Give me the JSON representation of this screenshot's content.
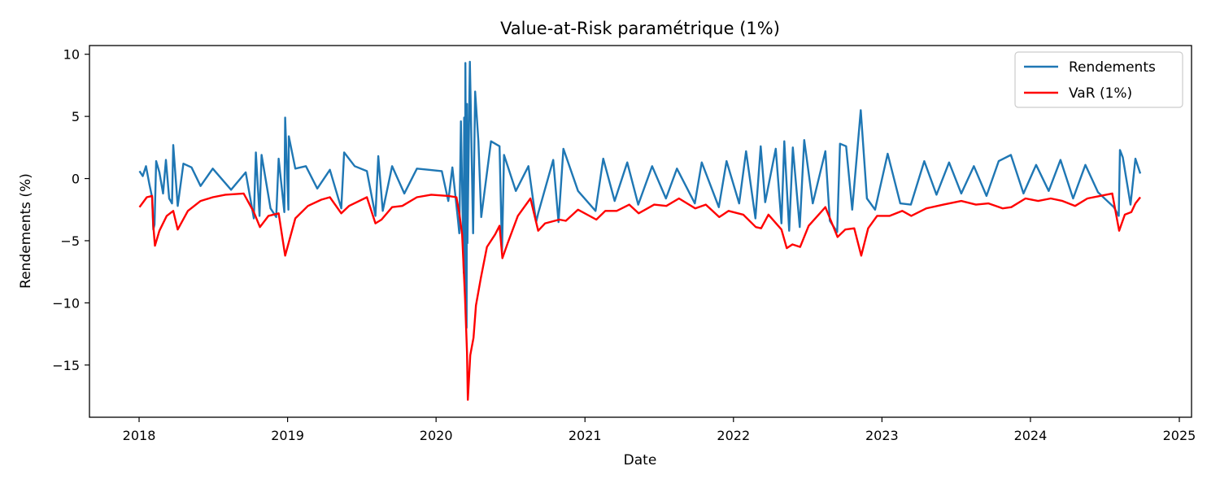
{
  "chart_data": {
    "type": "line",
    "title": "Value-at-Risk paramétrique (1%)",
    "xlabel": "Date",
    "ylabel": "Rendements (%)",
    "xlim": [
      "2017-09-01",
      "2025-01-31"
    ],
    "ylim": [
      -19.2,
      10.7
    ],
    "xticks": [
      {
        "value": "2018-01-01",
        "label": "2018"
      },
      {
        "value": "2019-01-01",
        "label": "2019"
      },
      {
        "value": "2020-01-01",
        "label": "2020"
      },
      {
        "value": "2021-01-01",
        "label": "2021"
      },
      {
        "value": "2022-01-01",
        "label": "2022"
      },
      {
        "value": "2023-01-01",
        "label": "2023"
      },
      {
        "value": "2024-01-01",
        "label": "2024"
      },
      {
        "value": "2025-01-01",
        "label": "2025"
      }
    ],
    "yticks": [
      10,
      5,
      0,
      -5,
      -10,
      -15
    ],
    "grid": false,
    "legend": {
      "position": "top-right"
    },
    "series": [
      {
        "name": "Rendements",
        "color": "#1f77b4",
        "points": [
          [
            "2018-01-02",
            0.6
          ],
          [
            "2018-01-10",
            0.2
          ],
          [
            "2018-01-18",
            1.0
          ],
          [
            "2018-01-26",
            -0.4
          ],
          [
            "2018-02-02",
            -1.5
          ],
          [
            "2018-02-05",
            -4.1
          ],
          [
            "2018-02-08",
            -3.7
          ],
          [
            "2018-02-12",
            1.4
          ],
          [
            "2018-02-20",
            0.5
          ],
          [
            "2018-03-01",
            -1.2
          ],
          [
            "2018-03-08",
            1.5
          ],
          [
            "2018-03-16",
            -1.6
          ],
          [
            "2018-03-23",
            -2.0
          ],
          [
            "2018-03-26",
            2.7
          ],
          [
            "2018-04-06",
            -2.2
          ],
          [
            "2018-04-20",
            1.2
          ],
          [
            "2018-05-10",
            0.9
          ],
          [
            "2018-06-01",
            -0.6
          ],
          [
            "2018-07-01",
            0.8
          ],
          [
            "2018-08-15",
            -0.9
          ],
          [
            "2018-09-20",
            0.5
          ],
          [
            "2018-10-10",
            -3.2
          ],
          [
            "2018-10-15",
            2.1
          ],
          [
            "2018-10-24",
            -3.0
          ],
          [
            "2018-10-29",
            1.9
          ],
          [
            "2018-11-20",
            -2.4
          ],
          [
            "2018-12-04",
            -3.1
          ],
          [
            "2018-12-10",
            1.6
          ],
          [
            "2018-12-24",
            -2.7
          ],
          [
            "2018-12-26",
            4.9
          ],
          [
            "2019-01-03",
            -2.5
          ],
          [
            "2019-01-04",
            3.4
          ],
          [
            "2019-01-20",
            0.8
          ],
          [
            "2019-02-15",
            1.0
          ],
          [
            "2019-03-15",
            -0.8
          ],
          [
            "2019-04-15",
            0.7
          ],
          [
            "2019-05-13",
            -2.4
          ],
          [
            "2019-05-20",
            2.1
          ],
          [
            "2019-06-15",
            1.0
          ],
          [
            "2019-07-15",
            0.6
          ],
          [
            "2019-08-05",
            -3.0
          ],
          [
            "2019-08-12",
            1.8
          ],
          [
            "2019-08-23",
            -2.6
          ],
          [
            "2019-09-15",
            1.0
          ],
          [
            "2019-10-15",
            -1.2
          ],
          [
            "2019-11-15",
            0.8
          ],
          [
            "2019-12-15",
            0.7
          ],
          [
            "2020-01-15",
            0.6
          ],
          [
            "2020-01-31",
            -1.8
          ],
          [
            "2020-02-10",
            0.9
          ],
          [
            "2020-02-24",
            -3.4
          ],
          [
            "2020-02-27",
            -4.4
          ],
          [
            "2020-03-02",
            4.6
          ],
          [
            "2020-03-09",
            -7.6
          ],
          [
            "2020-03-10",
            4.9
          ],
          [
            "2020-03-12",
            -9.5
          ],
          [
            "2020-03-13",
            9.3
          ],
          [
            "2020-03-16",
            -12.0
          ],
          [
            "2020-03-17",
            6.0
          ],
          [
            "2020-03-18",
            -5.2
          ],
          [
            "2020-03-24",
            9.4
          ],
          [
            "2020-03-26",
            6.2
          ],
          [
            "2020-04-01",
            -4.4
          ],
          [
            "2020-04-06",
            7.0
          ],
          [
            "2020-04-14",
            3.0
          ],
          [
            "2020-04-21",
            -3.1
          ],
          [
            "2020-05-15",
            3.0
          ],
          [
            "2020-06-05",
            2.6
          ],
          [
            "2020-06-11",
            -5.9
          ],
          [
            "2020-06-16",
            1.9
          ],
          [
            "2020-07-15",
            -1.0
          ],
          [
            "2020-08-15",
            1.0
          ],
          [
            "2020-09-03",
            -3.5
          ],
          [
            "2020-09-08",
            -2.8
          ],
          [
            "2020-10-15",
            1.5
          ],
          [
            "2020-10-28",
            -3.5
          ],
          [
            "2020-11-09",
            2.4
          ],
          [
            "2020-12-15",
            -1.0
          ],
          [
            "2021-01-27",
            -2.6
          ],
          [
            "2021-02-15",
            1.6
          ],
          [
            "2021-03-15",
            -1.8
          ],
          [
            "2021-04-15",
            1.3
          ],
          [
            "2021-05-12",
            -2.1
          ],
          [
            "2021-06-15",
            1.0
          ],
          [
            "2021-07-19",
            -1.6
          ],
          [
            "2021-08-15",
            0.8
          ],
          [
            "2021-09-28",
            -2.0
          ],
          [
            "2021-10-15",
            1.3
          ],
          [
            "2021-11-26",
            -2.3
          ],
          [
            "2021-12-15",
            1.4
          ],
          [
            "2022-01-15",
            -2.0
          ],
          [
            "2022-02-01",
            2.2
          ],
          [
            "2022-02-24",
            -3.2
          ],
          [
            "2022-03-09",
            2.6
          ],
          [
            "2022-03-20",
            -1.9
          ],
          [
            "2022-04-15",
            2.4
          ],
          [
            "2022-04-29",
            -3.6
          ],
          [
            "2022-05-06",
            3.0
          ],
          [
            "2022-05-18",
            -4.2
          ],
          [
            "2022-05-27",
            2.5
          ],
          [
            "2022-06-13",
            -3.9
          ],
          [
            "2022-06-24",
            3.1
          ],
          [
            "2022-07-15",
            -2.0
          ],
          [
            "2022-08-15",
            2.2
          ],
          [
            "2022-08-26",
            -3.4
          ],
          [
            "2022-09-13",
            -4.3
          ],
          [
            "2022-09-20",
            2.8
          ],
          [
            "2022-10-05",
            2.6
          ],
          [
            "2022-10-20",
            -2.5
          ],
          [
            "2022-11-10",
            5.5
          ],
          [
            "2022-11-25",
            -1.6
          ],
          [
            "2022-12-15",
            -2.5
          ],
          [
            "2023-01-15",
            2.0
          ],
          [
            "2023-02-15",
            -2.0
          ],
          [
            "2023-03-13",
            -2.1
          ],
          [
            "2023-04-15",
            1.4
          ],
          [
            "2023-05-15",
            -1.3
          ],
          [
            "2023-06-15",
            1.3
          ],
          [
            "2023-07-15",
            -1.2
          ],
          [
            "2023-08-15",
            1.0
          ],
          [
            "2023-09-15",
            -1.4
          ],
          [
            "2023-10-15",
            1.4
          ],
          [
            "2023-11-14",
            1.9
          ],
          [
            "2023-12-15",
            -1.2
          ],
          [
            "2024-01-15",
            1.1
          ],
          [
            "2024-02-15",
            -1.0
          ],
          [
            "2024-03-15",
            1.5
          ],
          [
            "2024-04-15",
            -1.6
          ],
          [
            "2024-05-15",
            1.1
          ],
          [
            "2024-06-15",
            -1.1
          ],
          [
            "2024-07-24",
            -2.3
          ],
          [
            "2024-08-05",
            -3.0
          ],
          [
            "2024-08-08",
            2.3
          ],
          [
            "2024-08-15",
            1.7
          ],
          [
            "2024-09-03",
            -2.1
          ],
          [
            "2024-09-15",
            1.6
          ],
          [
            "2024-09-27",
            0.4
          ]
        ]
      },
      {
        "name": "VaR (1%)",
        "color": "#ff0000",
        "points": [
          [
            "2018-01-02",
            -2.3
          ],
          [
            "2018-01-20",
            -1.5
          ],
          [
            "2018-02-02",
            -1.4
          ],
          [
            "2018-02-05",
            -3.8
          ],
          [
            "2018-02-09",
            -5.4
          ],
          [
            "2018-02-20",
            -4.2
          ],
          [
            "2018-03-10",
            -3.0
          ],
          [
            "2018-03-26",
            -2.6
          ],
          [
            "2018-04-06",
            -4.1
          ],
          [
            "2018-05-01",
            -2.6
          ],
          [
            "2018-06-01",
            -1.8
          ],
          [
            "2018-07-01",
            -1.5
          ],
          [
            "2018-08-01",
            -1.3
          ],
          [
            "2018-09-15",
            -1.2
          ],
          [
            "2018-10-10",
            -2.7
          ],
          [
            "2018-10-25",
            -3.9
          ],
          [
            "2018-11-15",
            -3.0
          ],
          [
            "2018-12-10",
            -2.8
          ],
          [
            "2018-12-26",
            -6.2
          ],
          [
            "2019-01-05",
            -5.0
          ],
          [
            "2019-01-20",
            -3.2
          ],
          [
            "2019-02-20",
            -2.2
          ],
          [
            "2019-03-25",
            -1.7
          ],
          [
            "2019-04-15",
            -1.5
          ],
          [
            "2019-05-13",
            -2.8
          ],
          [
            "2019-06-01",
            -2.2
          ],
          [
            "2019-07-15",
            -1.5
          ],
          [
            "2019-08-05",
            -3.6
          ],
          [
            "2019-08-20",
            -3.3
          ],
          [
            "2019-09-15",
            -2.3
          ],
          [
            "2019-10-10",
            -2.2
          ],
          [
            "2019-11-15",
            -1.5
          ],
          [
            "2019-12-20",
            -1.3
          ],
          [
            "2020-01-31",
            -1.4
          ],
          [
            "2020-02-20",
            -1.5
          ],
          [
            "2020-02-27",
            -2.8
          ],
          [
            "2020-03-05",
            -4.5
          ],
          [
            "2020-03-12",
            -9.5
          ],
          [
            "2020-03-17",
            -14.0
          ],
          [
            "2020-03-19",
            -17.8
          ],
          [
            "2020-03-25",
            -14.2
          ],
          [
            "2020-04-02",
            -12.8
          ],
          [
            "2020-04-08",
            -10.2
          ],
          [
            "2020-04-20",
            -8.0
          ],
          [
            "2020-05-05",
            -5.5
          ],
          [
            "2020-05-25",
            -4.5
          ],
          [
            "2020-06-05",
            -3.8
          ],
          [
            "2020-06-12",
            -6.4
          ],
          [
            "2020-06-25",
            -5.2
          ],
          [
            "2020-07-20",
            -3.0
          ],
          [
            "2020-08-20",
            -1.6
          ],
          [
            "2020-09-08",
            -4.2
          ],
          [
            "2020-09-25",
            -3.6
          ],
          [
            "2020-10-30",
            -3.3
          ],
          [
            "2020-11-15",
            -3.4
          ],
          [
            "2020-12-15",
            -2.5
          ],
          [
            "2021-01-29",
            -3.3
          ],
          [
            "2021-02-20",
            -2.6
          ],
          [
            "2021-03-20",
            -2.6
          ],
          [
            "2021-04-20",
            -2.1
          ],
          [
            "2021-05-13",
            -2.8
          ],
          [
            "2021-06-20",
            -2.1
          ],
          [
            "2021-07-20",
            -2.2
          ],
          [
            "2021-08-20",
            -1.6
          ],
          [
            "2021-09-29",
            -2.4
          ],
          [
            "2021-10-25",
            -2.1
          ],
          [
            "2021-11-27",
            -3.1
          ],
          [
            "2021-12-20",
            -2.6
          ],
          [
            "2022-01-25",
            -2.9
          ],
          [
            "2022-02-25",
            -3.9
          ],
          [
            "2022-03-10",
            -4.0
          ],
          [
            "2022-03-28",
            -2.9
          ],
          [
            "2022-04-29",
            -4.1
          ],
          [
            "2022-05-12",
            -5.6
          ],
          [
            "2022-05-26",
            -5.3
          ],
          [
            "2022-06-14",
            -5.5
          ],
          [
            "2022-07-05",
            -3.8
          ],
          [
            "2022-08-15",
            -2.3
          ],
          [
            "2022-09-14",
            -4.7
          ],
          [
            "2022-10-03",
            -4.1
          ],
          [
            "2022-10-25",
            -4.0
          ],
          [
            "2022-11-11",
            -6.2
          ],
          [
            "2022-11-28",
            -4.0
          ],
          [
            "2022-12-20",
            -3.0
          ],
          [
            "2023-01-20",
            -3.0
          ],
          [
            "2023-02-20",
            -2.6
          ],
          [
            "2023-03-14",
            -3.0
          ],
          [
            "2023-04-20",
            -2.4
          ],
          [
            "2023-06-01",
            -2.1
          ],
          [
            "2023-07-15",
            -1.8
          ],
          [
            "2023-08-20",
            -2.1
          ],
          [
            "2023-09-20",
            -2.0
          ],
          [
            "2023-10-25",
            -2.4
          ],
          [
            "2023-11-15",
            -2.3
          ],
          [
            "2023-12-20",
            -1.6
          ],
          [
            "2024-01-20",
            -1.8
          ],
          [
            "2024-02-20",
            -1.6
          ],
          [
            "2024-03-20",
            -1.8
          ],
          [
            "2024-04-20",
            -2.2
          ],
          [
            "2024-05-20",
            -1.6
          ],
          [
            "2024-06-20",
            -1.4
          ],
          [
            "2024-07-20",
            -1.2
          ],
          [
            "2024-08-06",
            -4.2
          ],
          [
            "2024-08-20",
            -2.9
          ],
          [
            "2024-09-05",
            -2.7
          ],
          [
            "2024-09-15",
            -2.0
          ],
          [
            "2024-09-27",
            -1.5
          ]
        ]
      }
    ]
  }
}
